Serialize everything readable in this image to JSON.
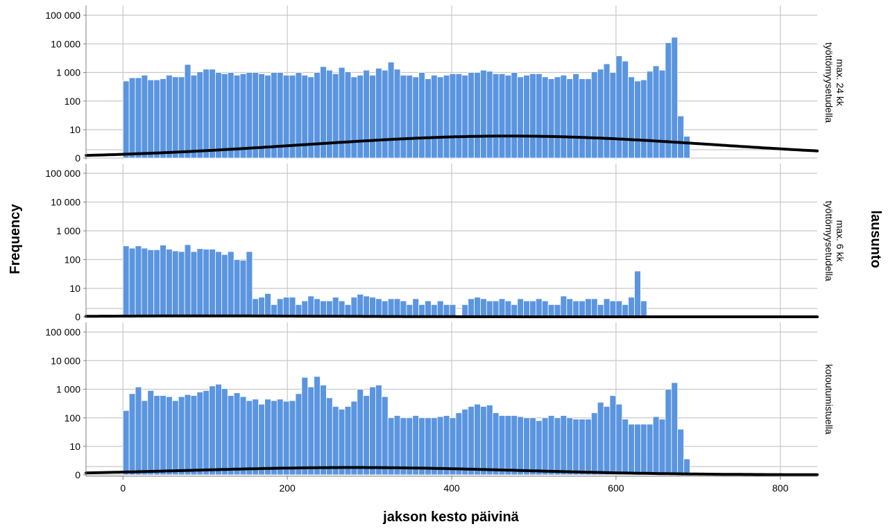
{
  "chart_data": {
    "type": "bar",
    "subtype": "paneled histogram with fitted normal curve",
    "xlabel": "jakson kesto päivinä",
    "ylabel": "Frequency",
    "row_facet_label": "lausunto",
    "xlim": [
      -45,
      845
    ],
    "x_ticks": [
      0,
      200,
      400,
      600,
      800
    ],
    "x_tick_labels": [
      "0",
      "200",
      "400",
      "600",
      "800"
    ],
    "y_scale": "log",
    "y_ticks": [
      0,
      10,
      100,
      1000,
      10000,
      100000
    ],
    "y_tick_labels": [
      "0",
      "10",
      "100",
      "1 000",
      "10 000",
      "100 000"
    ],
    "bin_start": 0,
    "bin_width": 7.5,
    "grid": true,
    "colors": {
      "bar": "#5b95e0",
      "bar_edge": "#ffffff",
      "curve": "#000000",
      "grid": "#c8c8c8",
      "axis": "#7f7f7f"
    },
    "panels": [
      {
        "label_lines": [
          "työttömyysetudella",
          "max. 24 kk"
        ],
        "values": [
          500,
          650,
          650,
          800,
          550,
          550,
          600,
          800,
          700,
          700,
          1900,
          800,
          1050,
          1300,
          1300,
          1000,
          900,
          1000,
          800,
          900,
          1000,
          1000,
          900,
          800,
          1000,
          1000,
          800,
          800,
          1000,
          800,
          700,
          1000,
          1600,
          1200,
          900,
          1500,
          1050,
          700,
          800,
          1200,
          800,
          1400,
          1200,
          2300,
          1300,
          800,
          800,
          700,
          1000,
          600,
          800,
          700,
          800,
          900,
          900,
          800,
          1000,
          1000,
          1200,
          1100,
          900,
          900,
          800,
          1000,
          700,
          800,
          900,
          900,
          700,
          600,
          700,
          800,
          600,
          900,
          600,
          600,
          1050,
          1300,
          2000,
          1000,
          3800,
          2500,
          700,
          500,
          550,
          1100,
          1700,
          1200,
          11000,
          17000,
          30,
          6
        ],
        "curve": {
          "mean": 470,
          "sd": 250,
          "peak": 9
        }
      },
      {
        "label_lines": [
          "työttömyysetudella",
          "max. 6 kk"
        ],
        "values": [
          300,
          250,
          300,
          250,
          220,
          220,
          320,
          230,
          200,
          190,
          330,
          190,
          240,
          230,
          230,
          190,
          150,
          190,
          100,
          95,
          190,
          3,
          4,
          8,
          1,
          3,
          4,
          4,
          1,
          2,
          5,
          3,
          2,
          2,
          4,
          2,
          1,
          4,
          7,
          5,
          4,
          3,
          2,
          3,
          3,
          2,
          1,
          3,
          1,
          2,
          1,
          2,
          1,
          1,
          0,
          1,
          3,
          4,
          3,
          2,
          2,
          3,
          2,
          1,
          3,
          2,
          2,
          3,
          2,
          1,
          1,
          5,
          3,
          2,
          2,
          3,
          3,
          1,
          3,
          2,
          2,
          1,
          4,
          40,
          2
        ],
        "curve": {
          "mean": 100,
          "sd": 150,
          "peak": 0.35
        }
      },
      {
        "label_lines": [
          "kotoutumistuella"
        ],
        "values": [
          180,
          700,
          1200,
          400,
          900,
          600,
          600,
          550,
          400,
          550,
          650,
          600,
          800,
          900,
          1300,
          1500,
          1050,
          600,
          750,
          550,
          400,
          450,
          300,
          450,
          400,
          450,
          380,
          400,
          700,
          2600,
          1200,
          2800,
          1400,
          500,
          250,
          200,
          250,
          380,
          1000,
          600,
          1200,
          1400,
          550,
          100,
          120,
          100,
          100,
          120,
          100,
          100,
          100,
          110,
          120,
          100,
          150,
          200,
          250,
          300,
          250,
          280,
          150,
          120,
          120,
          120,
          110,
          100,
          100,
          80,
          100,
          120,
          100,
          120,
          100,
          90,
          90,
          90,
          150,
          350,
          250,
          600,
          300,
          90,
          60,
          60,
          60,
          60,
          110,
          90,
          1000,
          1700,
          40,
          2
        ],
        "curve": {
          "mean": 280,
          "sd": 200,
          "peak": 3
        }
      }
    ]
  }
}
